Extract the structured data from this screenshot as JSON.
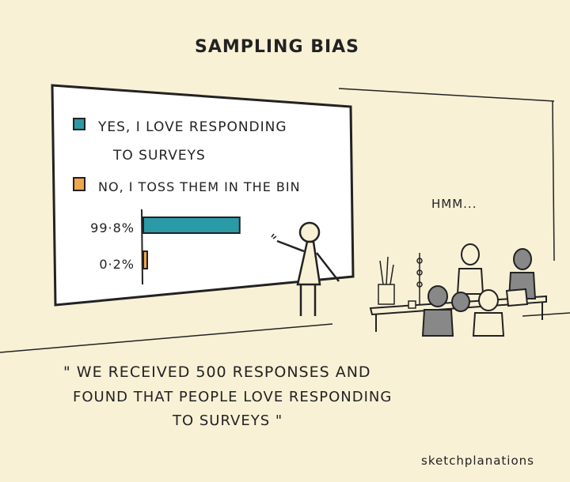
{
  "title": "SAMPLING BIAS",
  "board": {
    "legend": [
      {
        "label_line1": "YES, I LOVE RESPONDING",
        "label_line2": "TO SURVEYS",
        "color": "#2a9aa6"
      },
      {
        "label_line1": "NO, I TOSS THEM IN THE BIN",
        "label_line2": "",
        "color": "#f0a64a"
      }
    ],
    "bars": [
      {
        "label": "99·8%",
        "value": 99.8,
        "color": "#2a9aa6"
      },
      {
        "label": "0·2%",
        "value": 0.2,
        "color": "#f0a64a"
      }
    ]
  },
  "chart_data": {
    "type": "bar",
    "orientation": "horizontal",
    "categories": [
      "YES, I LOVE RESPONDING TO SURVEYS",
      "NO, I TOSS THEM IN THE BIN"
    ],
    "values": [
      99.8,
      0.2
    ],
    "data_labels": [
      "99·8%",
      "0·2%"
    ],
    "colors": [
      "#2a9aa6",
      "#f0a64a"
    ],
    "legend": "top"
  },
  "speech": "HMM...",
  "quote": {
    "line1": "\" WE RECEIVED 500 RESPONSES AND",
    "line2": "FOUND THAT PEOPLE LOVE RESPONDING",
    "line3": "TO SURVEYS \""
  },
  "signature": "sketchplanations",
  "colors": {
    "background": "#f8f1d6",
    "teal": "#2a9aa6",
    "orange": "#f0a64a",
    "ink": "#222222"
  }
}
